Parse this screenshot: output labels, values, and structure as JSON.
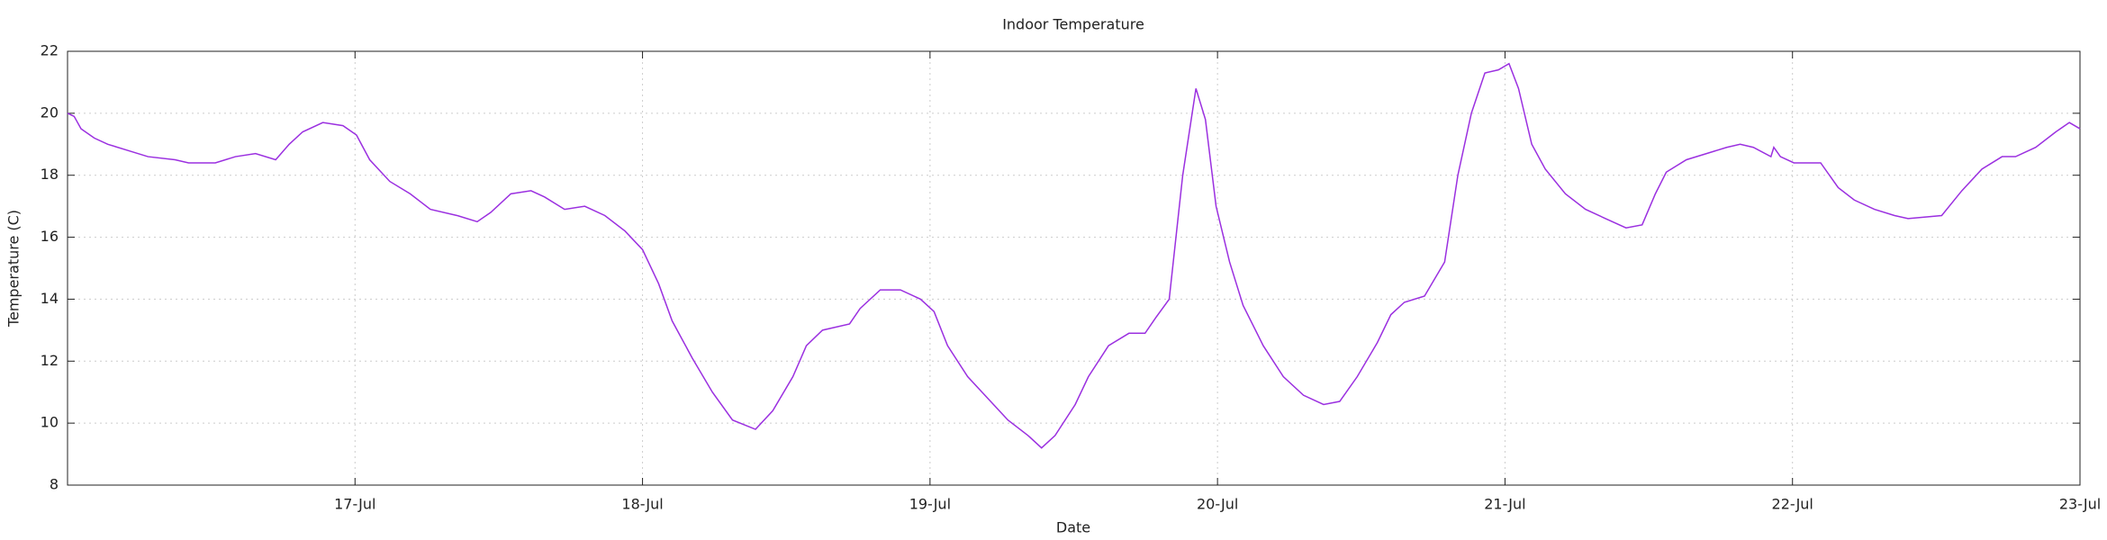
{
  "chart_data": {
    "type": "line",
    "title": "Indoor Temperature",
    "x_label": "Date",
    "y_label": "Temperature (C)",
    "x": [
      16.0,
      16.023,
      16.047,
      16.093,
      16.14,
      16.21,
      16.28,
      16.374,
      16.421,
      16.514,
      16.584,
      16.654,
      16.724,
      16.771,
      16.818,
      16.888,
      16.958,
      17.005,
      17.051,
      17.121,
      17.192,
      17.262,
      17.355,
      17.425,
      17.472,
      17.542,
      17.612,
      17.659,
      17.729,
      17.799,
      17.869,
      17.939,
      18.0,
      18.056,
      18.103,
      18.173,
      18.243,
      18.313,
      18.393,
      18.453,
      18.523,
      18.57,
      18.626,
      18.72,
      18.757,
      18.827,
      18.897,
      18.967,
      19.014,
      19.061,
      19.131,
      19.201,
      19.271,
      19.341,
      19.388,
      19.435,
      19.505,
      19.551,
      19.621,
      19.692,
      19.748,
      19.785,
      19.832,
      19.879,
      19.925,
      19.958,
      19.995,
      20.042,
      20.089,
      20.159,
      20.229,
      20.299,
      20.369,
      20.425,
      20.486,
      20.556,
      20.603,
      20.65,
      20.72,
      20.79,
      20.836,
      20.883,
      20.93,
      20.977,
      21.014,
      21.047,
      21.093,
      21.14,
      21.21,
      21.28,
      21.35,
      21.421,
      21.477,
      21.523,
      21.561,
      21.631,
      21.701,
      21.771,
      21.818,
      21.864,
      21.925,
      21.935,
      21.958,
      22.005,
      22.098,
      22.159,
      22.215,
      22.285,
      22.355,
      22.402,
      22.519,
      22.589,
      22.659,
      22.729,
      22.776,
      22.846,
      22.916,
      22.963,
      23.0
    ],
    "values": [
      20.0,
      19.9,
      19.5,
      19.2,
      19.0,
      18.8,
      18.6,
      18.5,
      18.4,
      18.4,
      18.6,
      18.7,
      18.5,
      19.0,
      19.4,
      19.7,
      19.6,
      19.3,
      18.5,
      17.8,
      17.4,
      16.9,
      16.7,
      16.5,
      16.8,
      17.4,
      17.5,
      17.3,
      16.9,
      17.0,
      16.7,
      16.2,
      15.6,
      14.5,
      13.3,
      12.1,
      11.0,
      10.1,
      9.8,
      10.4,
      11.5,
      12.5,
      13.0,
      13.2,
      13.7,
      14.3,
      14.3,
      14.0,
      13.6,
      12.5,
      11.5,
      10.8,
      10.1,
      9.6,
      9.2,
      9.6,
      10.6,
      11.5,
      12.5,
      12.9,
      12.9,
      13.4,
      14.0,
      18.0,
      20.8,
      19.8,
      17.0,
      15.2,
      13.8,
      12.5,
      11.5,
      10.9,
      10.6,
      10.7,
      11.5,
      12.6,
      13.5,
      13.9,
      14.1,
      15.2,
      18.0,
      20.0,
      21.3,
      21.4,
      21.6,
      20.8,
      19.0,
      18.2,
      17.4,
      16.9,
      16.6,
      16.3,
      16.4,
      17.4,
      18.1,
      18.5,
      18.7,
      18.9,
      19.0,
      18.9,
      18.6,
      18.9,
      18.6,
      18.4,
      18.4,
      17.6,
      17.2,
      16.9,
      16.7,
      16.6,
      16.7,
      17.5,
      18.2,
      18.6,
      18.6,
      18.9,
      19.4,
      19.7,
      19.5
    ],
    "color": "#9b30e0",
    "xlim": [
      16,
      23
    ],
    "xticks": [
      {
        "value": 17,
        "label": "17-Jul"
      },
      {
        "value": 18,
        "label": "18-Jul"
      },
      {
        "value": 19,
        "label": "19-Jul"
      },
      {
        "value": 20,
        "label": "20-Jul"
      },
      {
        "value": 21,
        "label": "21-Jul"
      },
      {
        "value": 22,
        "label": "22-Jul"
      },
      {
        "value": 23,
        "label": "23-Jul"
      }
    ],
    "ylim": [
      8,
      22
    ],
    "yticks": [
      8,
      10,
      12,
      14,
      16,
      18,
      20,
      22
    ],
    "grid": true
  }
}
